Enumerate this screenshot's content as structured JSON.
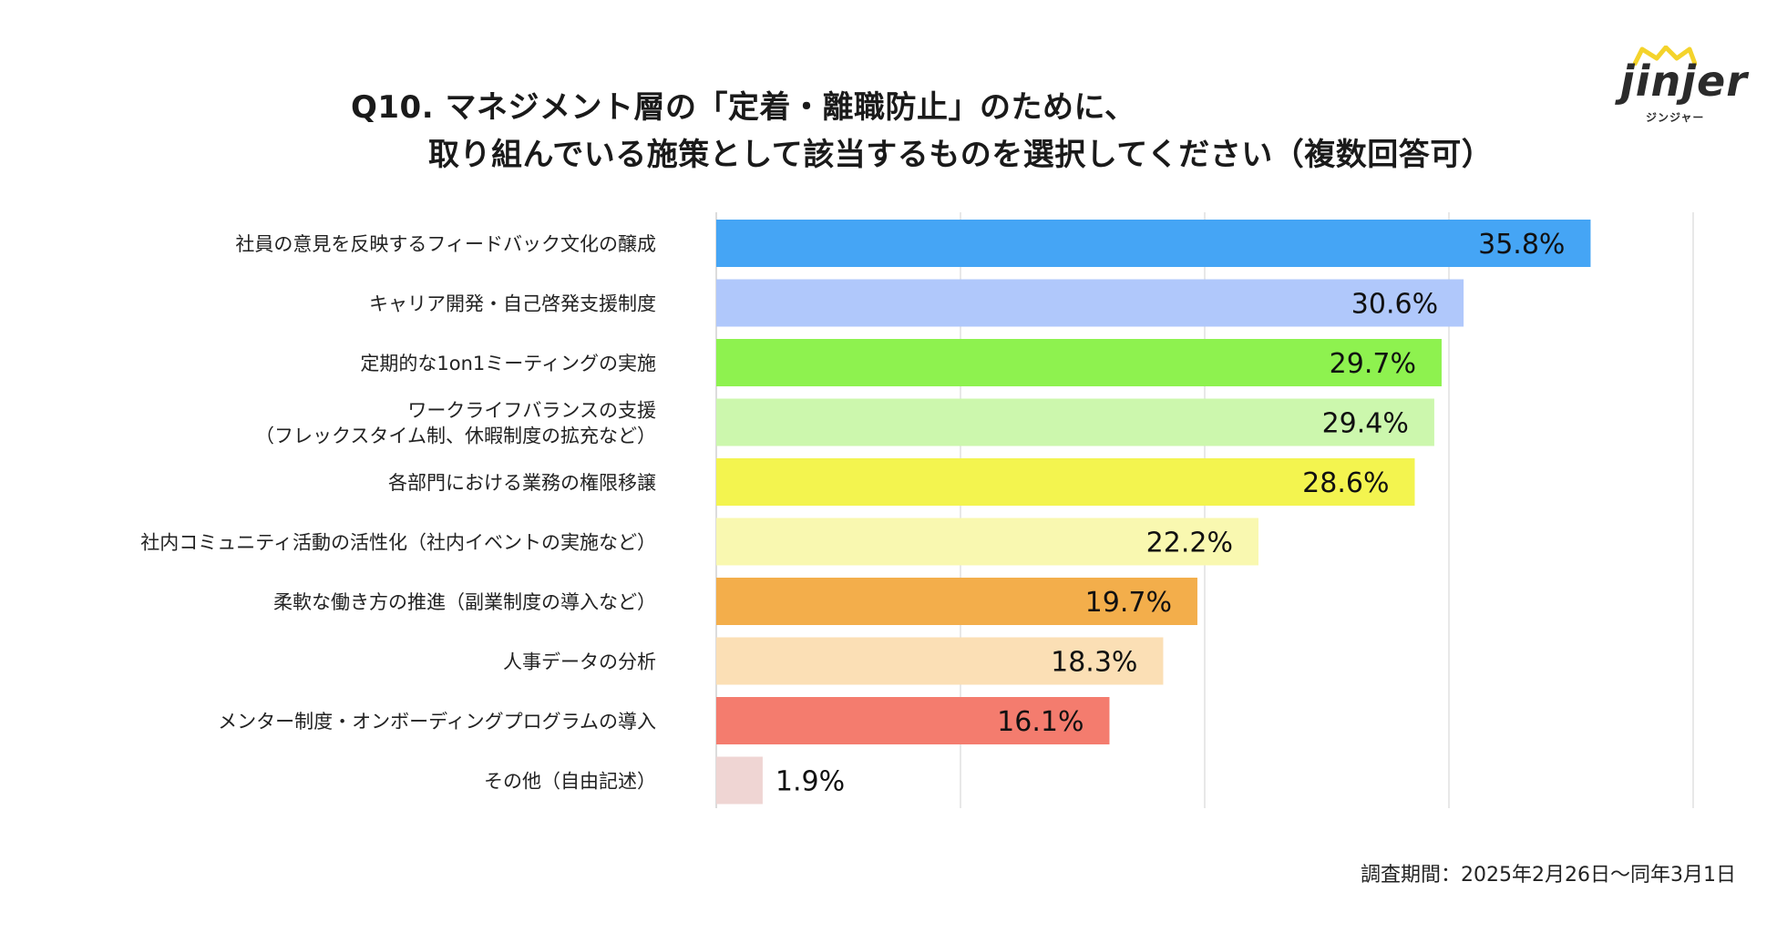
{
  "title": {
    "line1": "Q10. マネジメント層の「定着・離職防止」のために、",
    "line2": "取り組んでいる施策として該当するものを選択してください（複数回答可）"
  },
  "logo": {
    "word": "jinjer",
    "sub": "ジンジャー"
  },
  "footer": "調査期間：2025年2月26日〜同年3月1日",
  "chart_data": {
    "type": "bar",
    "orientation": "horizontal",
    "title": "Q10. マネジメント層の「定着・離職防止」のために、取り組んでいる施策として該当するものを選択してください（複数回答可）",
    "xlim": [
      0,
      40
    ],
    "grid": true,
    "legend": "none",
    "value_suffix": "%",
    "categories": [
      [
        "社員の意見を反映するフィードバック文化の醸成"
      ],
      [
        "キャリア開発・自己啓発支援制度"
      ],
      [
        "定期的な1on1ミーティングの実施"
      ],
      [
        "ワークライフバランスの支援",
        "（フレックスタイム制、休暇制度の拡充など）"
      ],
      [
        "各部門における業務の権限移譲"
      ],
      [
        "社内コミュニティ活動の活性化（社内イベントの実施など）"
      ],
      [
        "柔軟な働き方の推進（副業制度の導入など）"
      ],
      [
        "人事データの分析"
      ],
      [
        "メンター制度・オンボーディングプログラムの導入"
      ],
      [
        "その他（自由記述）"
      ]
    ],
    "values": [
      35.8,
      30.6,
      29.7,
      29.4,
      28.6,
      22.2,
      19.7,
      18.3,
      16.1,
      1.9
    ],
    "value_labels": [
      "35.8%",
      "30.6%",
      "29.7%",
      "29.4%",
      "28.6%",
      "22.2%",
      "19.7%",
      "18.3%",
      "16.1%",
      "1.9%"
    ],
    "colors": [
      "#45a5f5",
      "#b0c8fb",
      "#8ef24f",
      "#ccf7ad",
      "#f3f44f",
      "#f9f8b0",
      "#f3ae4b",
      "#fbdfb5",
      "#f47c6e",
      "#efd5d3"
    ]
  }
}
